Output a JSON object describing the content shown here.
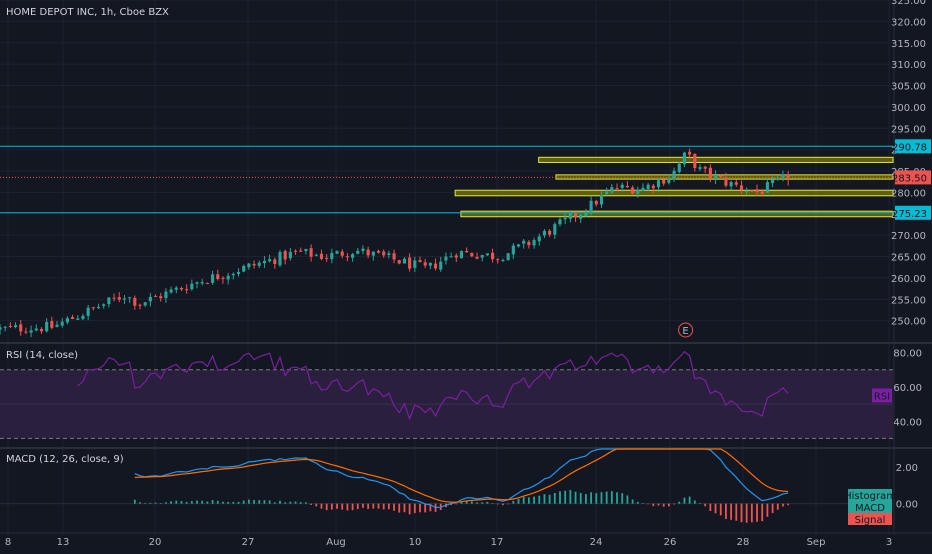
{
  "symbol_title": "HOME DEPOT INC, 1h, Cboe BZX",
  "colors": {
    "background": "#131722",
    "grid": "#1e2230",
    "up": "#26a69a",
    "down": "#ef5350",
    "zone_fill": "#6b6b14",
    "zone_stroke": "#e6e62e",
    "h_line": "#00bcd4",
    "price_line": "#ef5350",
    "rsi": "#7b1fa2",
    "rsi_band": "#2a1f3d",
    "macd": "#2196f3",
    "signal": "#ff6d00",
    "hist_up": "#26a69a",
    "hist_down": "#ef5350"
  },
  "chart_data": [
    {
      "type": "candlestick",
      "panel": "price",
      "title": "HOME DEPOT INC, 1h, Cboe BZX",
      "ylim": [
        245,
        325
      ],
      "yticks": [
        "325.00",
        "320.00",
        "315.00",
        "310.00",
        "305.00",
        "300.00",
        "295.00",
        "290.00",
        "285.00",
        "280.00",
        "275.00",
        "270.00",
        "265.00",
        "260.00",
        "255.00",
        "250.00"
      ],
      "x_ticks": [
        "8",
        "13",
        "20",
        "27",
        "Aug",
        "10",
        "17",
        "24",
        "26",
        "28",
        "Sep",
        "3"
      ],
      "x_range_days": [
        0,
        31
      ],
      "price_keypoints": [
        {
          "day": 0,
          "price": 248
        },
        {
          "day": 2,
          "price": 248.5
        },
        {
          "day": 3.5,
          "price": 253
        },
        {
          "day": 4.5,
          "price": 256
        },
        {
          "day": 5,
          "price": 254
        },
        {
          "day": 7,
          "price": 259
        },
        {
          "day": 9,
          "price": 263
        },
        {
          "day": 10.5,
          "price": 266
        },
        {
          "day": 11.5,
          "price": 265
        },
        {
          "day": 12.5,
          "price": 266.5
        },
        {
          "day": 14,
          "price": 264
        },
        {
          "day": 15,
          "price": 262
        },
        {
          "day": 16,
          "price": 266
        },
        {
          "day": 17.5,
          "price": 265
        },
        {
          "day": 18.5,
          "price": 268
        },
        {
          "day": 19.5,
          "price": 272
        },
        {
          "day": 20.5,
          "price": 276
        },
        {
          "day": 21.5,
          "price": 281
        },
        {
          "day": 22.5,
          "price": 281
        },
        {
          "day": 23.5,
          "price": 284
        },
        {
          "day": 24,
          "price": 289
        },
        {
          "day": 24.5,
          "price": 285
        },
        {
          "day": 25.5,
          "price": 282
        },
        {
          "day": 26.5,
          "price": 280
        },
        {
          "day": 27.5,
          "price": 283.5
        }
      ],
      "horizontal_lines": [
        {
          "price": 290.78,
          "label": "290.78"
        },
        {
          "price": 275.23,
          "label": "275.23"
        }
      ],
      "current_price": {
        "price": 283.5,
        "label": "283.50"
      },
      "zones": [
        {
          "start_day": 18.7,
          "low": 287,
          "high": 288.2
        },
        {
          "start_day": 19.3,
          "low": 283.1,
          "high": 284.1
        },
        {
          "start_day": 15.8,
          "low": 279.2,
          "high": 280.5
        },
        {
          "start_day": 16.0,
          "low": 274.3,
          "high": 275.6
        }
      ],
      "earnings_marker": {
        "day": 23.8,
        "label": "E"
      }
    },
    {
      "type": "line",
      "panel": "rsi",
      "title": "RSI (14, close)",
      "ylim": [
        25,
        85
      ],
      "yticks": [
        "80.00",
        "60.00",
        "40.00"
      ],
      "band": [
        30,
        70
      ],
      "current_label": "RSI",
      "current_value": 55
    },
    {
      "type": "line",
      "panel": "macd",
      "title": "MACD (12, 26, close, 9)",
      "ylim": [
        -1.5,
        3
      ],
      "yticks": [
        "2.00",
        "0.00"
      ],
      "series": [
        {
          "name": "MACD",
          "color": "#2196f3"
        },
        {
          "name": "Signal",
          "color": "#ff6d00"
        },
        {
          "name": "Histogram",
          "color": "#26a69a"
        }
      ]
    }
  ]
}
